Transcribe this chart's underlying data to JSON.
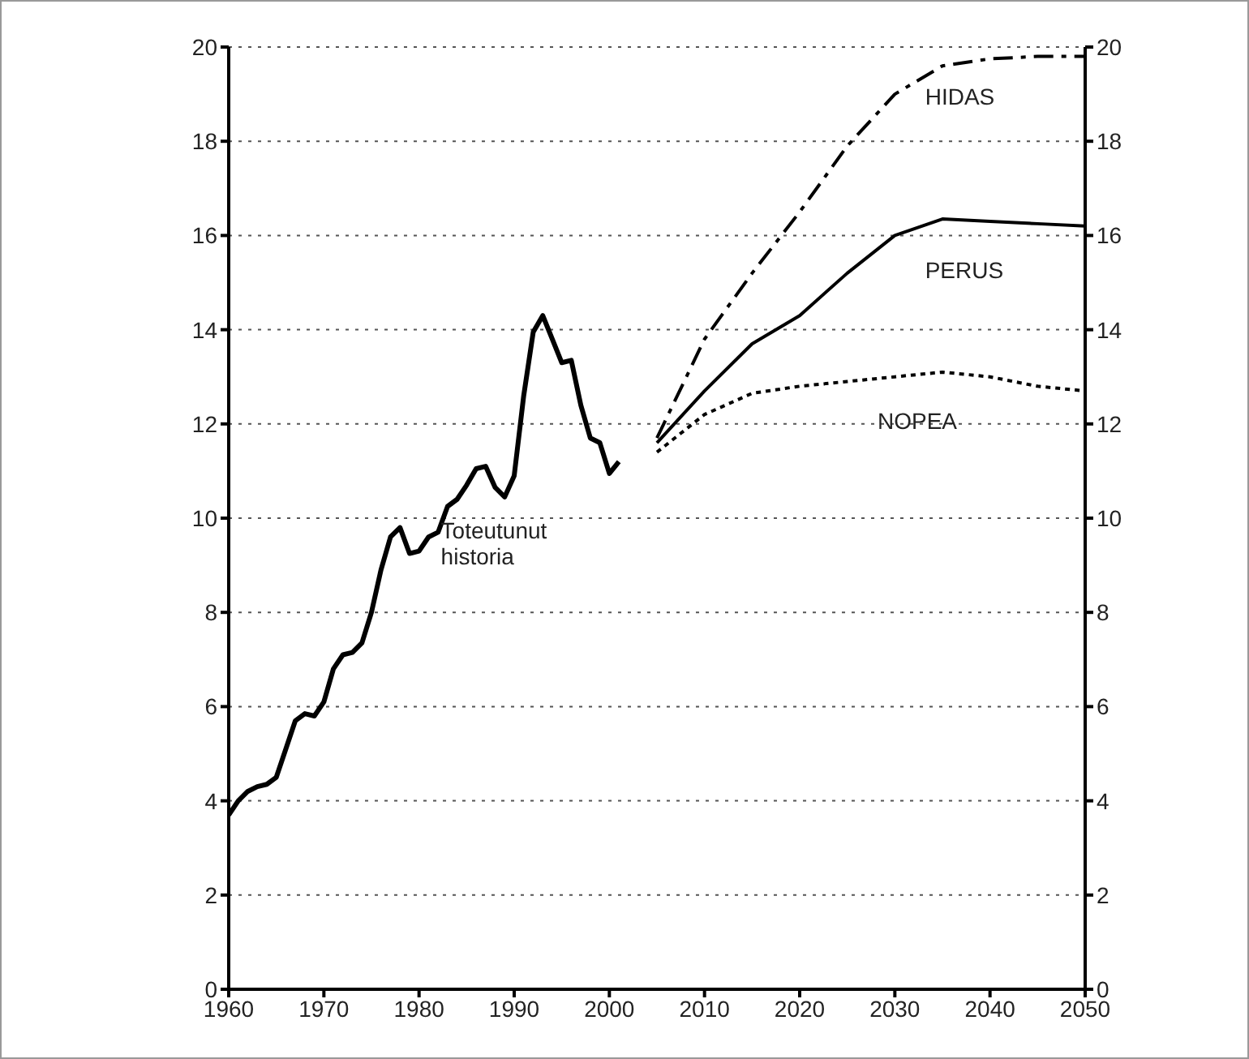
{
  "chart_data": {
    "type": "line",
    "xlim": [
      1960,
      2050
    ],
    "xticks": [
      1960,
      1970,
      1980,
      1990,
      2000,
      2010,
      2020,
      2030,
      2040,
      2050
    ],
    "ylim": [
      0,
      20
    ],
    "yticks": [
      0,
      2,
      4,
      6,
      8,
      10,
      12,
      14,
      16,
      18,
      20
    ],
    "y2lim": [
      0,
      20
    ],
    "y2ticks": [
      0,
      2,
      4,
      6,
      8,
      10,
      12,
      14,
      16,
      18,
      20
    ],
    "grid": "y",
    "legend": false,
    "marker": "none",
    "series": [
      {
        "name": "Toteutunut historia",
        "color": "#000000",
        "line_style": "solid",
        "x": [
          1960,
          1961,
          1962,
          1963,
          1964,
          1965,
          1966,
          1967,
          1968,
          1969,
          1970,
          1971,
          1972,
          1973,
          1974,
          1975,
          1976,
          1977,
          1978,
          1979,
          1980,
          1981,
          1982,
          1983,
          1984,
          1985,
          1986,
          1987,
          1988,
          1989,
          1990,
          1991,
          1992,
          1993,
          1994,
          1995,
          1996,
          1997,
          1998,
          1999,
          2000,
          2001
        ],
        "values": [
          3.7,
          4.0,
          4.2,
          4.3,
          4.35,
          4.5,
          5.1,
          5.7,
          5.85,
          5.8,
          6.1,
          6.8,
          7.1,
          7.15,
          7.35,
          8.0,
          8.9,
          9.6,
          9.8,
          9.25,
          9.3,
          9.6,
          9.7,
          10.25,
          10.4,
          10.7,
          11.05,
          11.1,
          10.65,
          10.45,
          10.9,
          12.6,
          13.95,
          14.3,
          13.8,
          13.3,
          13.35,
          12.4,
          11.7,
          11.6,
          10.95,
          11.2
        ]
      },
      {
        "name": "HIDAS",
        "color": "#000000",
        "line_style": "dashed",
        "x": [
          2005,
          2010,
          2015,
          2020,
          2025,
          2030,
          2035,
          2040,
          2045,
          2050
        ],
        "values": [
          11.7,
          13.8,
          15.2,
          16.5,
          17.9,
          19.0,
          19.6,
          19.75,
          19.8,
          19.8
        ]
      },
      {
        "name": "PERUS",
        "color": "#000000",
        "line_style": "solid",
        "x": [
          2005,
          2010,
          2015,
          2020,
          2025,
          2030,
          2035,
          2040,
          2045,
          2050
        ],
        "values": [
          11.6,
          12.7,
          13.7,
          14.3,
          15.2,
          16.0,
          16.35,
          16.3,
          16.25,
          16.2
        ]
      },
      {
        "name": "NOPEA",
        "color": "#000000",
        "line_style": "dotted",
        "x": [
          2005,
          2010,
          2015,
          2020,
          2025,
          2030,
          2035,
          2040,
          2045,
          2050
        ],
        "values": [
          11.4,
          12.2,
          12.65,
          12.8,
          12.9,
          13.0,
          13.1,
          13.0,
          12.8,
          12.7
        ]
      }
    ]
  }
}
